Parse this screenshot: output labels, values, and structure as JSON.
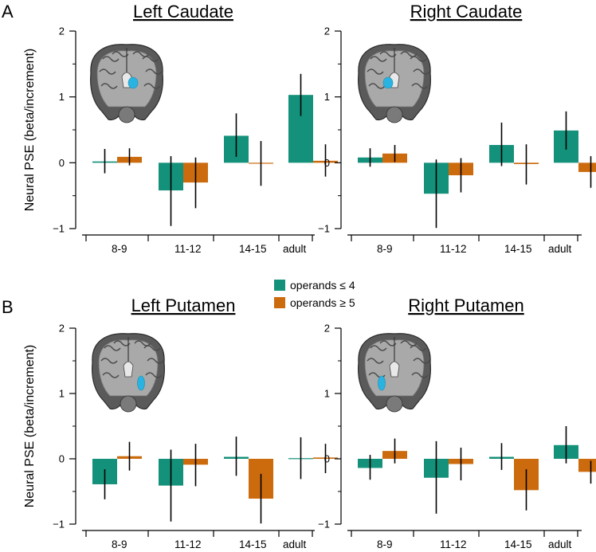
{
  "panel_labels": [
    "A",
    "B"
  ],
  "legend": {
    "items": [
      {
        "label": "operands ≤ 4",
        "color": "#14917a"
      },
      {
        "label": "operands ≥ 5",
        "color": "#cc6b0e"
      }
    ]
  },
  "chart_data": [
    {
      "type": "bar",
      "panel": "A",
      "title": "Left Caudate",
      "ylabel": "Neural PSE (beta/increment)",
      "ylim": [
        -1,
        2
      ],
      "yticks": [
        -1,
        0,
        1,
        2
      ],
      "categories": [
        "8-9",
        "11-12",
        "14-15",
        "adult"
      ],
      "highlight_icon": "coronal-brain-left-caudate-icon",
      "series": [
        {
          "name": "operands ≤ 4",
          "color": "#14917a",
          "values": [
            0.02,
            -0.42,
            0.41,
            1.03
          ],
          "err_low": [
            -0.16,
            -0.96,
            0.09,
            0.71
          ],
          "err_high": [
            0.21,
            0.1,
            0.75,
            1.35
          ]
        },
        {
          "name": "operands ≥ 5",
          "color": "#cc6b0e",
          "values": [
            0.09,
            -0.3,
            -0.01,
            0.03
          ],
          "err_low": [
            -0.04,
            -0.69,
            -0.35,
            -0.21
          ],
          "err_high": [
            0.22,
            0.08,
            0.33,
            0.28
          ]
        }
      ]
    },
    {
      "type": "bar",
      "panel": "A",
      "title": "Right Caudate",
      "ylabel": "",
      "ylim": [
        -1,
        2
      ],
      "yticks": [
        -1,
        0,
        1,
        2
      ],
      "categories": [
        "8-9",
        "11-12",
        "14-15",
        "adult"
      ],
      "highlight_icon": "coronal-brain-right-caudate-icon",
      "series": [
        {
          "name": "operands ≤ 4",
          "color": "#14917a",
          "values": [
            0.08,
            -0.47,
            0.27,
            0.49
          ],
          "err_low": [
            -0.06,
            -0.99,
            -0.05,
            0.2
          ],
          "err_high": [
            0.22,
            0.05,
            0.61,
            0.78
          ]
        },
        {
          "name": "operands ≥ 5",
          "color": "#cc6b0e",
          "values": [
            0.14,
            -0.19,
            -0.02,
            -0.14
          ],
          "err_low": [
            0.01,
            -0.45,
            -0.33,
            -0.38
          ],
          "err_high": [
            0.27,
            0.07,
            0.28,
            0.1
          ]
        }
      ]
    },
    {
      "type": "bar",
      "panel": "B",
      "title": "Left Putamen",
      "ylabel": "Neural PSE (beta/increment)",
      "ylim": [
        -1,
        2
      ],
      "yticks": [
        -1,
        0,
        1,
        2
      ],
      "categories": [
        "8-9",
        "11-12",
        "14-15",
        "adult"
      ],
      "highlight_icon": "coronal-brain-left-putamen-icon",
      "series": [
        {
          "name": "operands ≤ 4",
          "color": "#14917a",
          "values": [
            -0.39,
            -0.41,
            0.03,
            0.01
          ],
          "err_low": [
            -0.62,
            -0.96,
            -0.26,
            -0.31
          ],
          "err_high": [
            -0.16,
            0.14,
            0.34,
            0.33
          ]
        },
        {
          "name": "operands ≥ 5",
          "color": "#cc6b0e",
          "values": [
            0.04,
            -0.09,
            -0.61,
            0.02
          ],
          "err_low": [
            -0.18,
            -0.42,
            -0.99,
            -0.22
          ],
          "err_high": [
            0.26,
            0.23,
            -0.23,
            0.23
          ]
        }
      ]
    },
    {
      "type": "bar",
      "panel": "B",
      "title": "Right Putamen",
      "ylabel": "",
      "ylim": [
        -1,
        2
      ],
      "yticks": [
        -1,
        0,
        1,
        2
      ],
      "categories": [
        "8-9",
        "11-12",
        "14-15",
        "adult"
      ],
      "highlight_icon": "coronal-brain-right-putamen-icon",
      "series": [
        {
          "name": "operands ≤ 4",
          "color": "#14917a",
          "values": [
            -0.14,
            -0.29,
            0.03,
            0.21
          ],
          "err_low": [
            -0.32,
            -0.84,
            -0.17,
            -0.07
          ],
          "err_high": [
            0.06,
            0.27,
            0.24,
            0.5
          ]
        },
        {
          "name": "operands ≥ 5",
          "color": "#cc6b0e",
          "values": [
            0.12,
            -0.08,
            -0.48,
            -0.2
          ],
          "err_low": [
            -0.07,
            -0.33,
            -0.79,
            -0.38
          ],
          "err_high": [
            0.31,
            0.17,
            -0.16,
            -0.03
          ]
        }
      ]
    }
  ]
}
